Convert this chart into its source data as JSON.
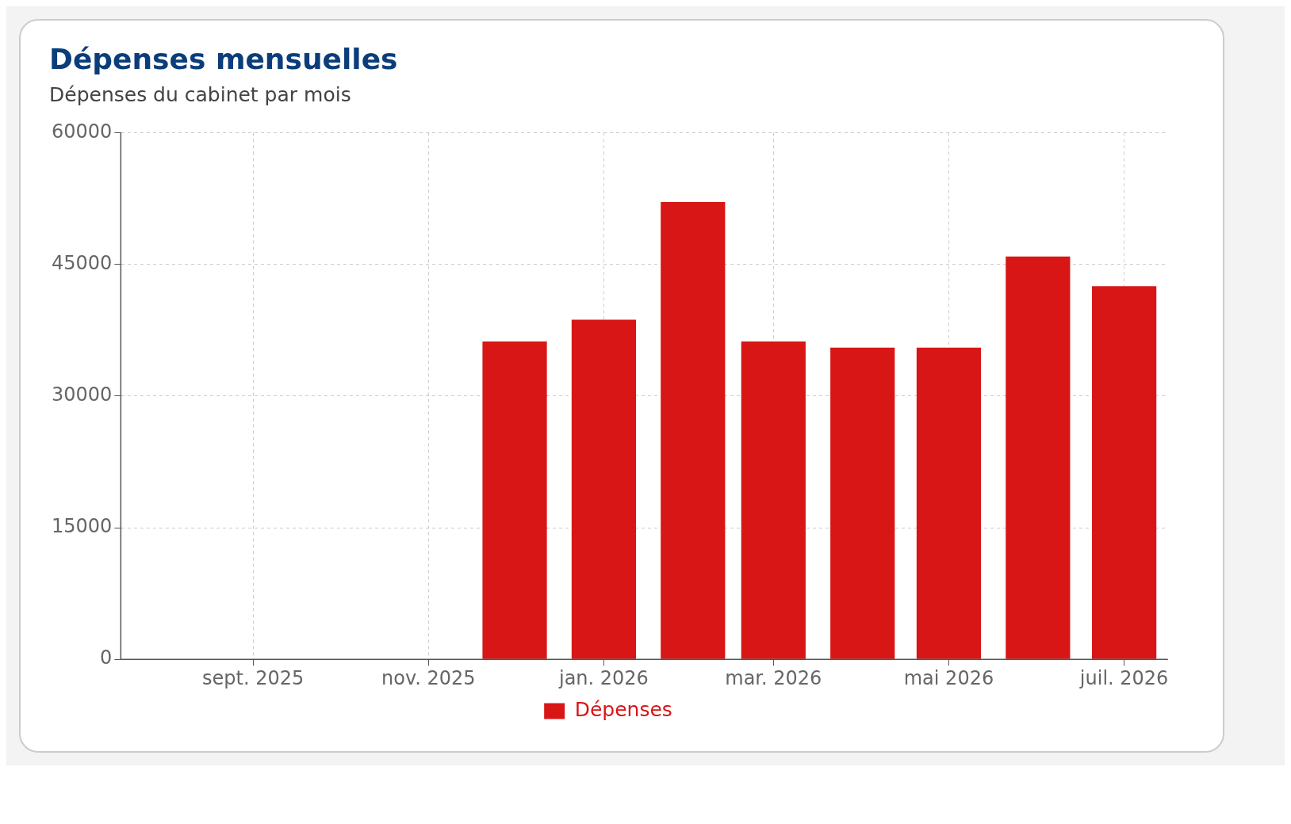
{
  "chart_data": {
    "type": "bar",
    "title": "Dépenses mensuelles",
    "subtitle": "Dépenses du cabinet par mois",
    "x": [
      "2025-12",
      "2026-01",
      "2026-02",
      "2026-03",
      "2026-04",
      "2026-05",
      "2026-06",
      "2026-07"
    ],
    "series": [
      {
        "name": "Dépenses",
        "color": "#d81616",
        "values": [
          36200,
          38700,
          52100,
          36200,
          35500,
          35500,
          45900,
          42500
        ]
      }
    ],
    "xlim": [
      "2025-07-17",
      "2026-07-16"
    ],
    "xticks": [
      {
        "value": "2025-09",
        "label": "sept. 2025"
      },
      {
        "value": "2025-11",
        "label": "nov. 2025"
      },
      {
        "value": "2026-01",
        "label": "jan. 2026"
      },
      {
        "value": "2026-03",
        "label": "mar. 2026"
      },
      {
        "value": "2026-05",
        "label": "mai 2026"
      },
      {
        "value": "2026-07",
        "label": "juil. 2026"
      }
    ],
    "ylim": [
      0,
      60000
    ],
    "yticks": [
      0,
      15000,
      30000,
      45000,
      60000
    ],
    "grid": true,
    "legend": "bottom"
  }
}
